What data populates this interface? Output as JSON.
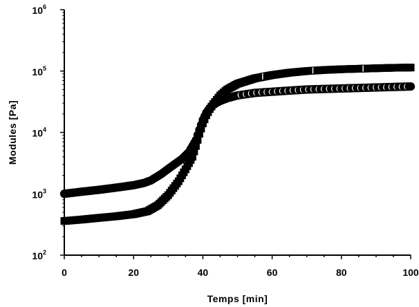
{
  "chart_data": {
    "type": "scatter",
    "title": "",
    "xlabel": "Temps [min]",
    "ylabel": "Modules [Pa]",
    "xlim": [
      0,
      100
    ],
    "ylim": [
      100,
      1000000
    ],
    "y_scale": "log",
    "x_ticks": [
      "0",
      "20",
      "40",
      "60",
      "80",
      "100"
    ],
    "y_ticks": [
      {
        "base": "10",
        "exp": "2"
      },
      {
        "base": "10",
        "exp": "3"
      },
      {
        "base": "10",
        "exp": "4"
      },
      {
        "base": "10",
        "exp": "5"
      },
      {
        "base": "10",
        "exp": "6"
      }
    ],
    "grid": false,
    "legend": "none",
    "series": [
      {
        "marker": "square",
        "marker_color": "#000000",
        "x": [
          0,
          5,
          10,
          15,
          20,
          24,
          27,
          30,
          33,
          35,
          37,
          38,
          39,
          40,
          41,
          42,
          43,
          44,
          45,
          47,
          50,
          55,
          60,
          65,
          70,
          75,
          80,
          85,
          90,
          95,
          100
        ],
        "y": [
          360,
          380,
          405,
          430,
          465,
          520,
          650,
          950,
          1600,
          2500,
          4000,
          6000,
          9500,
          14000,
          19000,
          24000,
          29000,
          34000,
          40000,
          50000,
          62000,
          76000,
          86000,
          94000,
          100000,
          104000,
          107000,
          109000,
          111000,
          113000,
          114000
        ]
      },
      {
        "marker": "circle",
        "marker_color": "#000000",
        "x": [
          0,
          5,
          10,
          15,
          20,
          23,
          25,
          28,
          31,
          34,
          36,
          38,
          39,
          40,
          41,
          42,
          43,
          44,
          45,
          47,
          50,
          55,
          60,
          65,
          70,
          75,
          80,
          85,
          90,
          95,
          100
        ],
        "y": [
          1000,
          1080,
          1160,
          1260,
          1380,
          1500,
          1650,
          2100,
          2800,
          3700,
          4800,
          7500,
          11000,
          16000,
          21000,
          25000,
          28000,
          30500,
          32500,
          36000,
          40000,
          44000,
          46000,
          48000,
          50000,
          51000,
          52000,
          53000,
          54000,
          55000,
          56000
        ]
      }
    ]
  }
}
